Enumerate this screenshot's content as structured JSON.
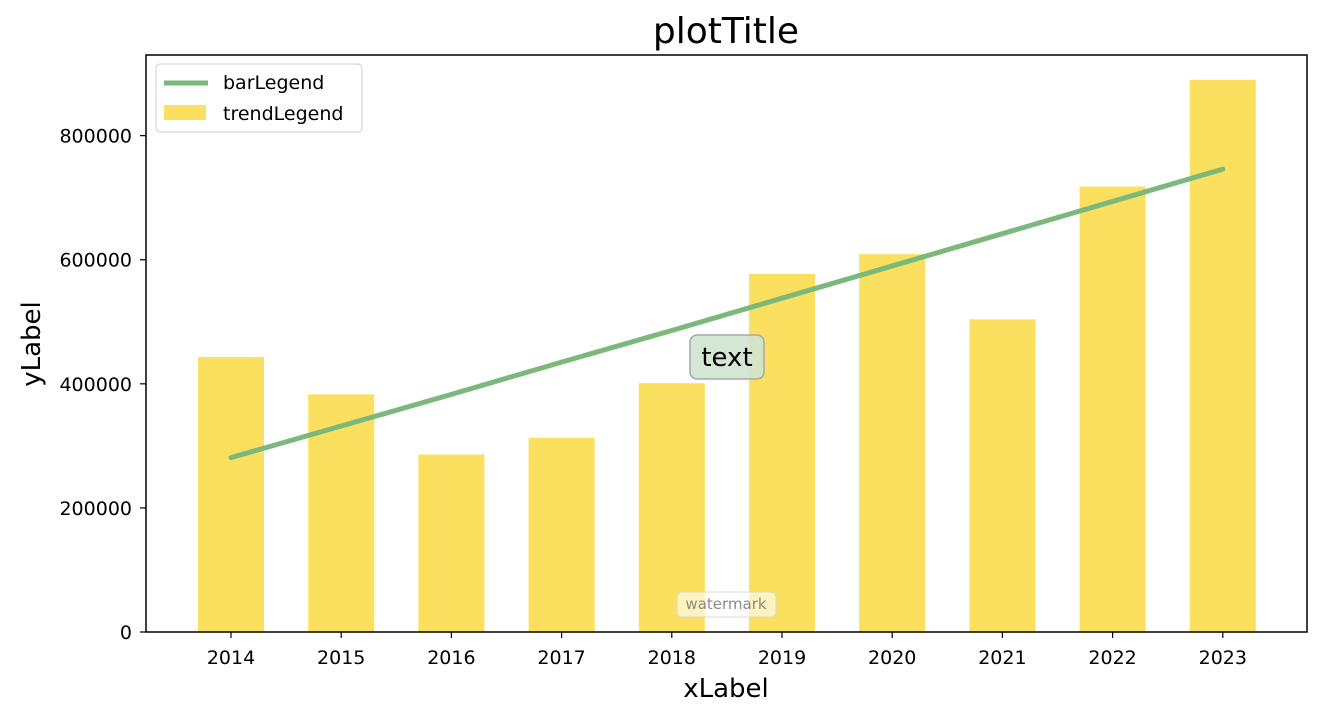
{
  "chart_data": {
    "type": "bar",
    "title": "plotTitle",
    "xlabel": "xLabel",
    "ylabel": "yLabel",
    "categories": [
      "2014",
      "2015",
      "2016",
      "2017",
      "2018",
      "2019",
      "2020",
      "2021",
      "2022",
      "2023"
    ],
    "series": [
      {
        "name": "trendLegend",
        "type": "bar",
        "values": [
          443000,
          383000,
          286000,
          313000,
          401000,
          577000,
          609000,
          504000,
          718000,
          890000
        ],
        "color": "#fae05e"
      },
      {
        "name": "barLegend",
        "type": "line",
        "values": [
          281000,
          332000,
          383000,
          435000,
          486000,
          538000,
          590000,
          642000,
          694000,
          746000
        ],
        "color": "#7bb87b"
      }
    ],
    "ylim": [
      0,
      930000
    ],
    "yticks": [
      0,
      200000,
      400000,
      600000,
      800000
    ],
    "ytick_labels": [
      "0",
      "200000",
      "400000",
      "600000",
      "800000"
    ],
    "grid": false,
    "legend_position": "top-left",
    "annotation": {
      "text": "text",
      "x_category": "2018.5",
      "y": 445000
    },
    "watermark": "watermark"
  }
}
